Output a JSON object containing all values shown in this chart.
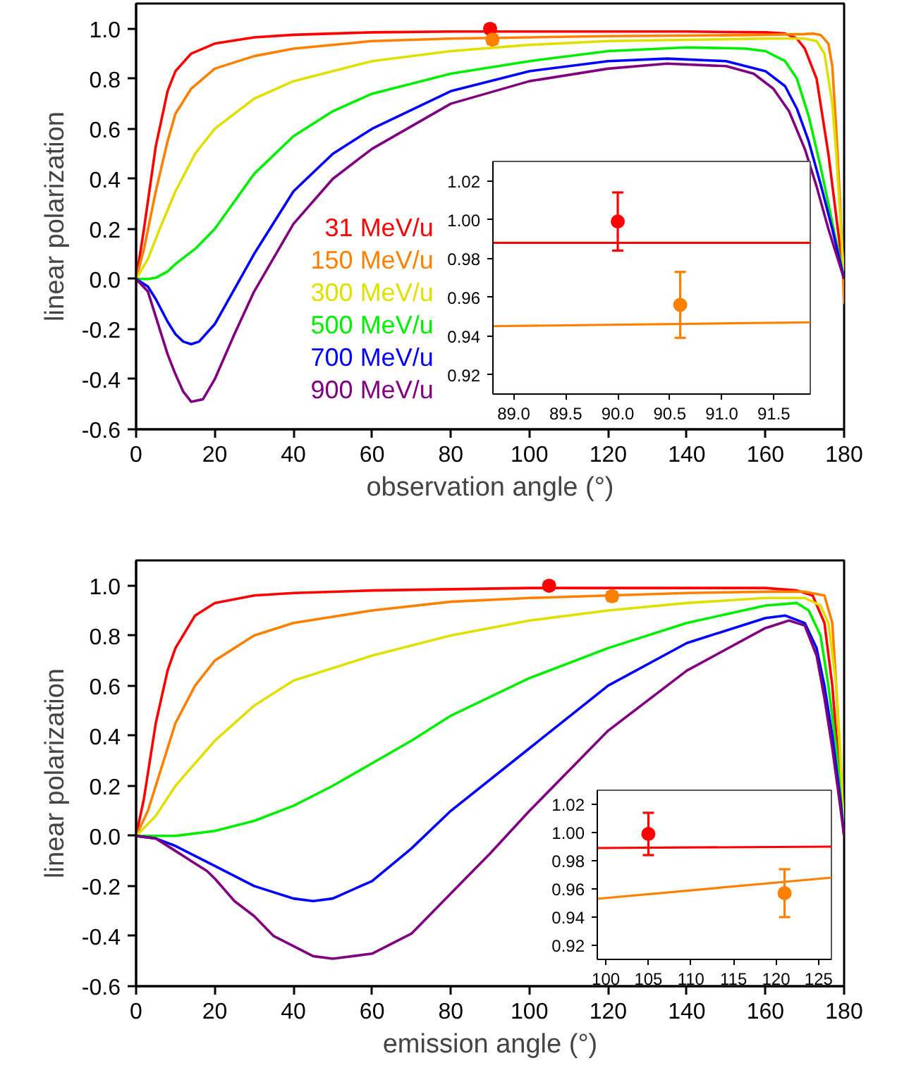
{
  "chart_data": [
    {
      "type": "line",
      "xlabel": "observation angle (°)",
      "ylabel": "linear polarization",
      "xlim": [
        0,
        180
      ],
      "ylim": [
        -0.6,
        1.1
      ],
      "xticks": [
        0,
        20,
        40,
        60,
        80,
        100,
        120,
        140,
        160,
        180
      ],
      "yticks": [
        {
          "value": -0.6,
          "label": "-0.6"
        },
        {
          "value": -0.4,
          "label": "-0.4"
        },
        {
          "value": -0.2,
          "label": "-0.2"
        },
        {
          "value": 0,
          "label": "0.0"
        },
        {
          "value": 0.2,
          "label": "0.2"
        },
        {
          "value": 0.4,
          "label": "0.4"
        },
        {
          "value": 0.6,
          "label": "0.6"
        },
        {
          "value": 0.8,
          "label": "0.8"
        },
        {
          "value": 1.0,
          "label": "1.0"
        }
      ],
      "legend": "bottom left",
      "series": [
        {
          "name": "31 MeV/u",
          "color": "#ff0000",
          "x": [
            0,
            2,
            5,
            8,
            10,
            14,
            20,
            30,
            40,
            60,
            80,
            100,
            120,
            140,
            160,
            165,
            168,
            170,
            173,
            176,
            178,
            180
          ],
          "values": [
            0,
            0.2,
            0.53,
            0.75,
            0.83,
            0.9,
            0.94,
            0.965,
            0.975,
            0.985,
            0.988,
            0.988,
            0.988,
            0.988,
            0.985,
            0.98,
            0.96,
            0.92,
            0.8,
            0.5,
            0.25,
            0.0
          ]
        },
        {
          "name": "150 MeV/u",
          "color": "#ff8000",
          "x": [
            0,
            2,
            5,
            8,
            10,
            14,
            20,
            30,
            40,
            60,
            80,
            100,
            120,
            140,
            160,
            170,
            172,
            174,
            176,
            177,
            178,
            179,
            180
          ],
          "values": [
            0,
            0.12,
            0.35,
            0.55,
            0.66,
            0.76,
            0.84,
            0.89,
            0.92,
            0.95,
            0.96,
            0.965,
            0.97,
            0.972,
            0.975,
            0.978,
            0.98,
            0.975,
            0.94,
            0.85,
            0.6,
            0.3,
            -0.1
          ]
        },
        {
          "name": "300 MeV/u",
          "color": "#e0e000",
          "x": [
            0,
            3,
            6,
            10,
            15,
            20,
            30,
            40,
            60,
            80,
            100,
            120,
            140,
            160,
            170,
            173,
            175,
            177,
            178,
            179,
            180
          ],
          "values": [
            0,
            0.08,
            0.2,
            0.35,
            0.5,
            0.6,
            0.72,
            0.79,
            0.87,
            0.91,
            0.935,
            0.95,
            0.955,
            0.96,
            0.96,
            0.95,
            0.9,
            0.7,
            0.5,
            0.25,
            0.0
          ]
        },
        {
          "name": "500 MeV/u",
          "color": "#00ee00",
          "x": [
            0,
            3,
            5,
            8,
            10,
            15,
            20,
            25,
            30,
            40,
            50,
            60,
            80,
            100,
            120,
            140,
            155,
            160,
            165,
            168,
            171,
            174,
            176,
            178,
            180
          ],
          "values": [
            0,
            0.0,
            0.005,
            0.03,
            0.06,
            0.12,
            0.2,
            0.31,
            0.42,
            0.57,
            0.67,
            0.74,
            0.82,
            0.87,
            0.91,
            0.925,
            0.92,
            0.91,
            0.87,
            0.8,
            0.65,
            0.45,
            0.3,
            0.15,
            0.0
          ]
        },
        {
          "name": "700 MeV/u",
          "color": "#0000ff",
          "x": [
            0,
            3,
            5,
            8,
            10,
            12,
            14,
            16,
            20,
            25,
            30,
            40,
            50,
            60,
            80,
            100,
            120,
            135,
            150,
            160,
            165,
            168,
            171,
            174,
            177,
            180
          ],
          "values": [
            0,
            -0.03,
            -0.08,
            -0.17,
            -0.22,
            -0.25,
            -0.26,
            -0.25,
            -0.18,
            -0.04,
            0.1,
            0.35,
            0.5,
            0.6,
            0.75,
            0.83,
            0.87,
            0.88,
            0.87,
            0.83,
            0.77,
            0.68,
            0.55,
            0.38,
            0.2,
            0.0
          ]
        },
        {
          "name": "900 MeV/u",
          "color": "#800080",
          "x": [
            0,
            3,
            5,
            8,
            10,
            12,
            14,
            17,
            20,
            25,
            30,
            40,
            50,
            60,
            80,
            100,
            120,
            135,
            150,
            157,
            162,
            166,
            170,
            173,
            176,
            178,
            180
          ],
          "values": [
            0,
            -0.05,
            -0.15,
            -0.3,
            -0.38,
            -0.45,
            -0.49,
            -0.48,
            -0.4,
            -0.22,
            -0.05,
            0.22,
            0.4,
            0.52,
            0.7,
            0.79,
            0.84,
            0.86,
            0.85,
            0.82,
            0.76,
            0.67,
            0.52,
            0.37,
            0.2,
            0.1,
            0.0
          ]
        },
        {
          "type": "scatter",
          "marker": "circle",
          "color": "#ff0000",
          "x": [
            90
          ],
          "values": [
            0.999
          ],
          "errors": [
            0.015
          ]
        },
        {
          "type": "scatter",
          "marker": "circle",
          "color": "#ff8000",
          "x": [
            90.6
          ],
          "values": [
            0.956
          ],
          "errors": [
            0.017
          ]
        }
      ]
    },
    {
      "type": "line",
      "xlim": [
        88.8,
        91.85
      ],
      "ylim": [
        0.91,
        1.03
      ],
      "xticks": [
        {
          "value": 89,
          "label": "89.0"
        },
        {
          "value": 89.5,
          "label": "89.5"
        },
        {
          "value": 90,
          "label": "90.0"
        },
        {
          "value": 90.5,
          "label": "90.5"
        },
        {
          "value": 91,
          "label": "91.0"
        },
        {
          "value": 91.5,
          "label": "91.5"
        }
      ],
      "yticks": [
        0.92,
        0.94,
        0.96,
        0.98,
        {
          "value": 1.0,
          "label": "1.00"
        },
        1.02
      ],
      "series": [
        {
          "color": "#ff0000",
          "x": [
            88.8,
            91.85
          ],
          "values": [
            0.988,
            0.988
          ]
        },
        {
          "color": "#ff8000",
          "x": [
            88.8,
            91.85
          ],
          "values": [
            0.945,
            0.947
          ]
        },
        {
          "type": "scatter",
          "marker": "circle",
          "color": "#ff0000",
          "x": [
            90
          ],
          "values": [
            0.999
          ],
          "errors": [
            0.015
          ]
        },
        {
          "type": "scatter",
          "marker": "circle",
          "color": "#ff8000",
          "x": [
            90.6
          ],
          "values": [
            0.956
          ],
          "errors": [
            0.017
          ]
        }
      ]
    },
    {
      "type": "line",
      "xlabel": "emission angle (°)",
      "ylabel": "linear polarization",
      "xlim": [
        0,
        180
      ],
      "ylim": [
        -0.6,
        1.1
      ],
      "xticks": [
        0,
        20,
        40,
        60,
        80,
        100,
        120,
        140,
        160,
        180
      ],
      "yticks": [
        {
          "value": -0.6,
          "label": "-0.6"
        },
        {
          "value": -0.4,
          "label": "-0.4"
        },
        {
          "value": -0.2,
          "label": "-0.2"
        },
        {
          "value": 0,
          "label": "0.0"
        },
        {
          "value": 0.2,
          "label": "0.2"
        },
        {
          "value": 0.4,
          "label": "0.4"
        },
        {
          "value": 0.6,
          "label": "0.6"
        },
        {
          "value": 0.8,
          "label": "0.8"
        },
        {
          "value": 1.0,
          "label": "1.0"
        }
      ],
      "series": [
        {
          "color": "#ff0000",
          "x": [
            0,
            2,
            5,
            8,
            10,
            15,
            20,
            30,
            40,
            60,
            80,
            100,
            130,
            160,
            168,
            172,
            175,
            177,
            178,
            179,
            180
          ],
          "values": [
            0,
            0.15,
            0.45,
            0.66,
            0.75,
            0.88,
            0.93,
            0.96,
            0.97,
            0.98,
            0.985,
            0.99,
            0.99,
            0.99,
            0.98,
            0.96,
            0.85,
            0.6,
            0.4,
            0.2,
            0.0
          ]
        },
        {
          "color": "#ff8000",
          "x": [
            0,
            3,
            5,
            10,
            15,
            20,
            30,
            40,
            60,
            80,
            100,
            120,
            140,
            160,
            170,
            175,
            177,
            178,
            179,
            180
          ],
          "values": [
            0,
            0.1,
            0.2,
            0.45,
            0.6,
            0.7,
            0.8,
            0.85,
            0.9,
            0.935,
            0.95,
            0.96,
            0.97,
            0.975,
            0.975,
            0.96,
            0.85,
            0.6,
            0.3,
            0.0
          ]
        },
        {
          "color": "#e0e000",
          "x": [
            0,
            5,
            10,
            20,
            30,
            40,
            60,
            80,
            100,
            120,
            140,
            160,
            170,
            174,
            176,
            178,
            179,
            180
          ],
          "values": [
            0,
            0.08,
            0.2,
            0.38,
            0.52,
            0.62,
            0.72,
            0.8,
            0.86,
            0.9,
            0.93,
            0.95,
            0.95,
            0.92,
            0.85,
            0.6,
            0.35,
            0.0
          ]
        },
        {
          "color": "#00ee00",
          "x": [
            0,
            10,
            20,
            30,
            40,
            50,
            60,
            70,
            80,
            100,
            120,
            140,
            160,
            168,
            171,
            174,
            176,
            178,
            180
          ],
          "values": [
            0,
            0.0,
            0.02,
            0.06,
            0.12,
            0.2,
            0.29,
            0.38,
            0.48,
            0.63,
            0.75,
            0.85,
            0.92,
            0.93,
            0.9,
            0.8,
            0.6,
            0.35,
            0.0
          ]
        },
        {
          "color": "#0000ff",
          "x": [
            0,
            5,
            10,
            20,
            30,
            40,
            45,
            50,
            60,
            70,
            80,
            100,
            120,
            140,
            160,
            165,
            170,
            173,
            175,
            177,
            179,
            180
          ],
          "values": [
            0,
            -0.01,
            -0.04,
            -0.12,
            -0.2,
            -0.25,
            -0.26,
            -0.25,
            -0.18,
            -0.05,
            0.1,
            0.35,
            0.6,
            0.77,
            0.87,
            0.88,
            0.85,
            0.75,
            0.6,
            0.4,
            0.15,
            0.0
          ]
        },
        {
          "color": "#800080",
          "x": [
            0,
            5,
            10,
            15,
            18,
            20,
            25,
            30,
            35,
            40,
            45,
            50,
            60,
            70,
            80,
            90,
            100,
            120,
            140,
            160,
            166,
            170,
            173,
            175,
            177,
            179,
            180
          ],
          "values": [
            0,
            -0.01,
            -0.06,
            -0.11,
            -0.14,
            -0.17,
            -0.26,
            -0.32,
            -0.4,
            -0.44,
            -0.48,
            -0.49,
            -0.47,
            -0.39,
            -0.23,
            -0.07,
            0.1,
            0.42,
            0.66,
            0.83,
            0.86,
            0.84,
            0.72,
            0.55,
            0.35,
            0.12,
            0.0
          ]
        },
        {
          "type": "scatter",
          "marker": "circle",
          "color": "#ff0000",
          "x": [
            105
          ],
          "values": [
            0.999
          ],
          "errors": [
            0.015
          ]
        },
        {
          "type": "scatter",
          "marker": "circle",
          "color": "#ff8000",
          "x": [
            121
          ],
          "values": [
            0.957
          ],
          "errors": [
            0.017
          ]
        }
      ]
    },
    {
      "type": "line",
      "xlim": [
        99,
        126.5
      ],
      "ylim": [
        0.91,
        1.03
      ],
      "xticks": [
        100,
        105,
        110,
        115,
        120,
        125
      ],
      "yticks": [
        0.92,
        0.94,
        0.96,
        0.98,
        {
          "value": 1.0,
          "label": "1.00"
        },
        1.02
      ],
      "series": [
        {
          "color": "#ff0000",
          "x": [
            99,
            126.5
          ],
          "values": [
            0.989,
            0.99
          ]
        },
        {
          "color": "#ff8000",
          "x": [
            99,
            126.5
          ],
          "values": [
            0.953,
            0.968
          ]
        },
        {
          "type": "scatter",
          "marker": "circle",
          "color": "#ff0000",
          "x": [
            105
          ],
          "values": [
            0.999
          ],
          "errors": [
            0.015
          ]
        },
        {
          "type": "scatter",
          "marker": "circle",
          "color": "#ff8000",
          "x": [
            121
          ],
          "values": [
            0.957
          ],
          "errors": [
            0.017
          ]
        }
      ]
    }
  ]
}
